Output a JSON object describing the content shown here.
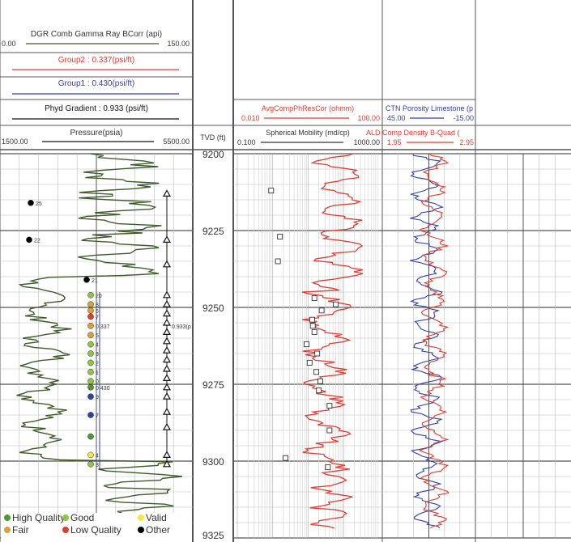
{
  "header": {
    "gamma": {
      "title": "DGR Comb Gamma Ray BCorr (api)",
      "min": "0.00",
      "max": "150.00"
    },
    "group2": {
      "label": "Group2 : 0.337(psi/ft)"
    },
    "group1": {
      "label": "Group1 : 0.430(psi/ft)"
    },
    "phyd": {
      "label": "Phyd Gradient : 0.933 (psi/ft)"
    },
    "pressure": {
      "title": "Pressure(psia)",
      "min": "1500.00",
      "max": "5500.00"
    },
    "tvd": {
      "title": "TVD (ft)"
    },
    "resist": {
      "title": "AvgCompPhResCor (ohmm)",
      "min": "0.010",
      "max": "100.00"
    },
    "mobility": {
      "title": "Spherical Mobility (md/cp)",
      "min": "0.100",
      "max": "1000.00"
    },
    "porosity": {
      "title": "CTN Porosity Limestone (p",
      "min": "45.00",
      "max": "-15.00"
    },
    "density": {
      "title": "ALD Comp Density B-Quad (",
      "min": "1.95",
      "max": "2.95"
    }
  },
  "legend": [
    {
      "label": "High Quality",
      "color": "#4e9a2e"
    },
    {
      "label": "Good",
      "color": "#8dc63f"
    },
    {
      "label": "Valid",
      "color": "#f5e642"
    },
    {
      "label": "Fair",
      "color": "#d9a032"
    },
    {
      "label": "Low Quality",
      "color": "#e03c31"
    },
    {
      "label": "Other",
      "color": "#000000"
    }
  ],
  "colors": {
    "gamma": "#3e5a2a",
    "resist": "#e03c31",
    "porosity": "#2e3fa8",
    "grid": "#999999",
    "mobility_band": "#d0d0d0"
  },
  "chart_data": {
    "type": "line",
    "y_axis": {
      "label": "TVD (ft)",
      "ylim": [
        9200,
        9325
      ],
      "ticks": [
        9200,
        9225,
        9250,
        9275,
        9300,
        9325
      ]
    },
    "pressure_points": [
      {
        "depth": 9216,
        "label": "25",
        "color": "#000000"
      },
      {
        "depth": 9228,
        "label": "22",
        "color": "#000000"
      },
      {
        "depth": 9241,
        "label": "21",
        "color": "#000000"
      },
      {
        "depth": 9246,
        "label": "20",
        "color": "#8dc63f"
      },
      {
        "depth": 9249,
        "label": "8",
        "color": "#d9a032"
      },
      {
        "depth": 9251,
        "label": "6",
        "color": "#d9a032"
      },
      {
        "depth": 9253,
        "label": "7",
        "color": "#e03c31"
      },
      {
        "depth": 9256,
        "label": "0.337",
        "color": "#d9a032"
      },
      {
        "depth": 9259,
        "label": "5",
        "color": "#d9a032"
      },
      {
        "depth": 9262,
        "label": "4",
        "color": "#8dc63f"
      },
      {
        "depth": 9265,
        "label": "3",
        "color": "#8dc63f"
      },
      {
        "depth": 9268,
        "label": "2",
        "color": "#8dc63f"
      },
      {
        "depth": 9271,
        "label": "1",
        "color": "#8dc63f"
      },
      {
        "depth": 9274,
        "label": "0",
        "color": "#8dc63f"
      },
      {
        "depth": 9276,
        "label": "0.430",
        "color": "#4e9a2e"
      },
      {
        "depth": 9279,
        "label": "9",
        "color": "#2e3fa8"
      },
      {
        "depth": 9285,
        "label": "7",
        "color": "#2e3fa8"
      },
      {
        "depth": 9292,
        "label": "",
        "color": "#4e9a2e"
      },
      {
        "depth": 9298,
        "label": "4",
        "color": "#f5e642"
      },
      {
        "depth": 9301,
        "label": "3",
        "color": "#8dc63f"
      }
    ],
    "phyd_label": "0.933(p",
    "phyd_triangles": [
      9213,
      9228,
      9236,
      9246,
      9249,
      9252,
      9255,
      9258,
      9261,
      9264,
      9267,
      9270,
      9273,
      9276,
      9279,
      9284,
      9289,
      9298,
      9301
    ],
    "mobility_points": [
      {
        "depth": 9212,
        "value": 0.9
      },
      {
        "depth": 9227,
        "value": 1.6
      },
      {
        "depth": 9235,
        "value": 1.4
      },
      {
        "depth": 9247,
        "value": 15
      },
      {
        "depth": 9249,
        "value": 60
      },
      {
        "depth": 9251,
        "value": 24
      },
      {
        "depth": 9254,
        "value": 13
      },
      {
        "depth": 9256,
        "value": 13.5
      },
      {
        "depth": 9258,
        "value": 15
      },
      {
        "depth": 9262,
        "value": 9
      },
      {
        "depth": 9265,
        "value": 18
      },
      {
        "depth": 9268,
        "value": 11
      },
      {
        "depth": 9271,
        "value": 17
      },
      {
        "depth": 9274,
        "value": 22
      },
      {
        "depth": 9277,
        "value": 20
      },
      {
        "depth": 9282,
        "value": 40
      },
      {
        "depth": 9290,
        "value": 40
      },
      {
        "depth": 9299,
        "value": 2.3
      },
      {
        "depth": 9302,
        "value": 36
      }
    ]
  }
}
